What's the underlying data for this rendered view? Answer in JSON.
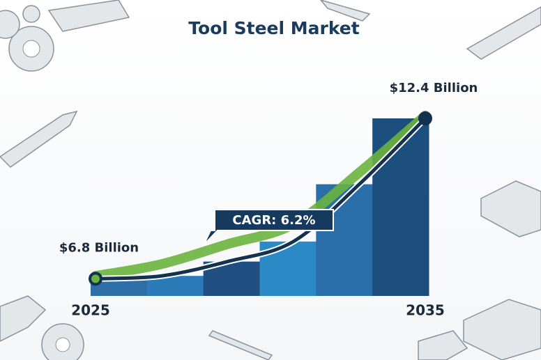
{
  "chart_data": {
    "type": "bar",
    "title": "Tool Steel Market",
    "categories": [
      "2025",
      null,
      null,
      null,
      null,
      "2035"
    ],
    "values": [
      6.8,
      6.9,
      7.4,
      8.1,
      10.1,
      12.4
    ],
    "value_labels": [
      "$6.8 Billion",
      null,
      null,
      null,
      null,
      "$12.4 Billion"
    ],
    "colors": [
      "#2f6fa8",
      "#2a7bb8",
      "#1f4f80",
      "#2b8ac6",
      "#2a6eaa",
      "#1d4f7e"
    ],
    "line_color": "#13324f",
    "area_color": "#6ab33e",
    "annotation": "CAGR: 6.2%",
    "ylim": [
      6.2,
      12.4
    ]
  }
}
